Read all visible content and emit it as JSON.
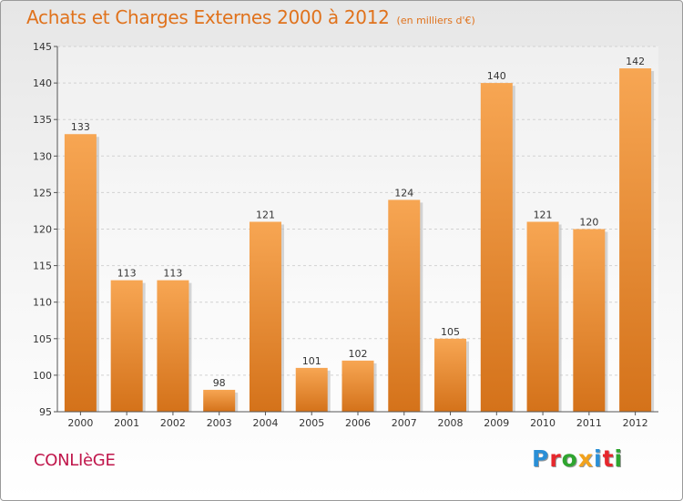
{
  "title": "Achats et Charges Externes 2000 à 2012",
  "unit_note": "(en milliers d'€)",
  "city": "CONLIèGE",
  "logo": {
    "text": "Proxiti",
    "colors": [
      "#2a8fd6",
      "#e6272c",
      "#2fa52f",
      "#f2a21c",
      "#2a8fd6",
      "#e6272c",
      "#2fa52f"
    ]
  },
  "colors": {
    "bar_light": "#f7a653",
    "bar_dark": "#d4721a",
    "title": "#e0721c",
    "city": "#c0164b"
  },
  "chart_data": {
    "type": "bar",
    "title": "Achats et Charges Externes 2000 à 2012",
    "subtitle": "(en milliers d'€)",
    "xlabel": "",
    "ylabel": "",
    "categories": [
      "2000",
      "2001",
      "2002",
      "2003",
      "2004",
      "2005",
      "2006",
      "2007",
      "2008",
      "2009",
      "2010",
      "2011",
      "2012"
    ],
    "values": [
      133,
      113,
      113,
      98,
      121,
      101,
      102,
      124,
      105,
      140,
      121,
      120,
      142
    ],
    "ylim": [
      95,
      145
    ],
    "yticks": [
      95,
      100,
      105,
      110,
      115,
      120,
      125,
      130,
      135,
      140,
      145
    ],
    "grid": true,
    "data_labels": true
  }
}
